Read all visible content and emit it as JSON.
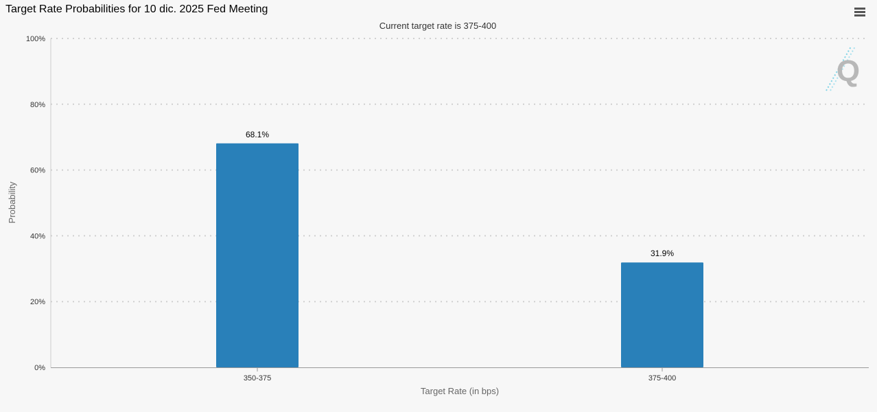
{
  "header": {
    "title": "Target Rate Probabilities for 10 dic. 2025 Fed Meeting",
    "menu_icon": "hamburger-menu-icon"
  },
  "watermark": {
    "letter": "Q",
    "icon": "quikstrike-logo-icon"
  },
  "colors": {
    "bar": "#2980b9",
    "background": "#f7f7f7",
    "gridline": "#d0d0d0",
    "axis": "#999999",
    "text": "#333333"
  },
  "chart_data": {
    "type": "bar",
    "title": "Target Rate Probabilities for 10 dic. 2025 Fed Meeting",
    "subtitle": "Current target rate is 375-400",
    "xlabel": "Target Rate (in bps)",
    "ylabel": "Probability",
    "categories": [
      "350-375",
      "375-400"
    ],
    "values": [
      68.1,
      31.9
    ],
    "data_labels": [
      "68.1%",
      "31.9%"
    ],
    "ylim": [
      0,
      100
    ],
    "yticks": [
      0,
      20,
      40,
      60,
      80,
      100
    ],
    "ytick_labels": [
      "0%",
      "20%",
      "40%",
      "60%",
      "80%",
      "100%"
    ],
    "grid": true,
    "legend": false
  }
}
